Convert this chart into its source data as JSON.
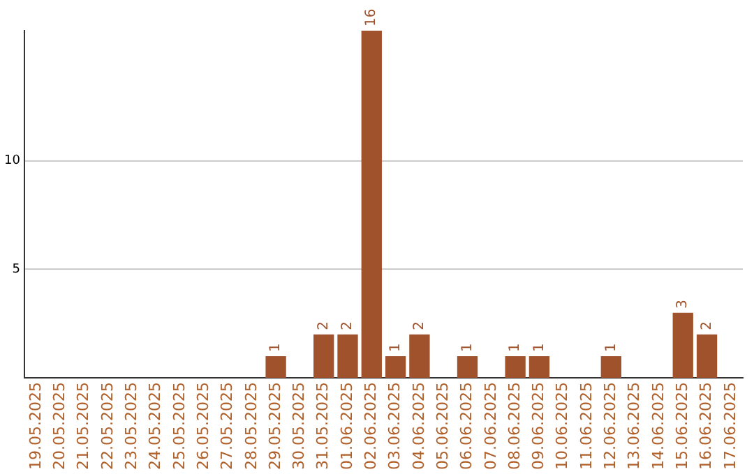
{
  "chart_data": {
    "type": "bar",
    "categories": [
      "19.05.2025",
      "20.05.2025",
      "21.05.2025",
      "22.05.2025",
      "23.05.2025",
      "24.05.2025",
      "25.05.2025",
      "26.05.2025",
      "27.05.2025",
      "28.05.2025",
      "29.05.2025",
      "30.05.2025",
      "31.05.2025",
      "01.06.2025",
      "02.06.2025",
      "03.06.2025",
      "04.06.2025",
      "05.06.2025",
      "06.06.2025",
      "07.06.2025",
      "08.06.2025",
      "09.06.2025",
      "10.06.2025",
      "11.06.2025",
      "12.06.2025",
      "13.06.2025",
      "14.06.2025",
      "15.06.2025",
      "16.06.2025",
      "17.06.2025"
    ],
    "values": [
      0,
      0,
      0,
      0,
      0,
      0,
      0,
      0,
      0,
      0,
      1,
      0,
      2,
      2,
      16,
      1,
      2,
      0,
      1,
      0,
      1,
      1,
      0,
      0,
      1,
      0,
      0,
      3,
      2,
      0
    ],
    "value_labels": [
      null,
      null,
      null,
      null,
      null,
      null,
      null,
      null,
      null,
      null,
      "1",
      null,
      "2",
      "2",
      "16",
      "1",
      "2",
      null,
      "1",
      null,
      "1",
      "1",
      null,
      null,
      "1",
      null,
      null,
      "3",
      "2",
      null
    ],
    "color": "#a0522d",
    "ylim": [
      0,
      16
    ],
    "yticks": [
      5,
      10
    ],
    "grid": "y",
    "legend": false
  }
}
